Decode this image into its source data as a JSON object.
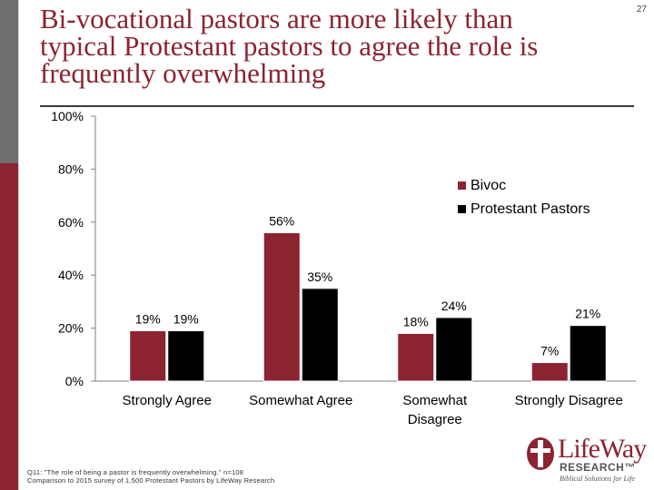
{
  "title": "Bi-vocational pastors are more likely than typical Protestant pastors to agree the role is frequently overwhelming",
  "page_number": "27",
  "footnote": [
    "Q11: \"The role of being a pastor is frequently overwhelming.\" n=108",
    "Comparison to 2015 survey of 1,500 Protestant Pastors by LifeWay Research"
  ],
  "logo": {
    "word": "LifeWay",
    "research": "RESEARCH™",
    "tagline": "Biblical Solutions for Life"
  },
  "colors": {
    "brand": "#8b2331",
    "bivoc": "#8b2331",
    "protestant": "#000000",
    "sidebar_gray": "#6e6e6e"
  },
  "chart_data": {
    "type": "bar",
    "categories": [
      "Strongly Agree",
      "Somewhat Agree",
      "Somewhat\nDisagree",
      "Strongly Disagree"
    ],
    "series": [
      {
        "name": "Bivoc",
        "values": [
          19,
          56,
          18,
          7
        ],
        "labels": [
          "19%",
          "56%",
          "18%",
          "7%"
        ]
      },
      {
        "name": "Protestant Pastors",
        "values": [
          19,
          35,
          24,
          21
        ],
        "labels": [
          "19%",
          "35%",
          "24%",
          "21%"
        ]
      }
    ],
    "y_ticks": [
      "0%",
      "20%",
      "40%",
      "60%",
      "80%",
      "100%"
    ],
    "ylim": [
      0,
      100
    ],
    "legend_position": "right",
    "grid": false
  }
}
